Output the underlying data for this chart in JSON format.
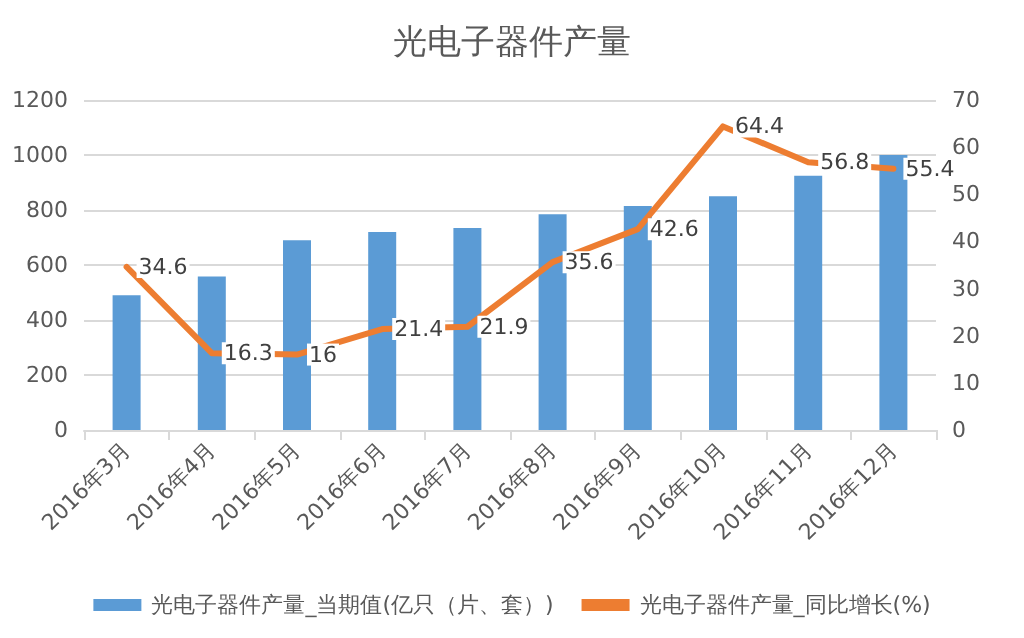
{
  "chart_data": {
    "type": "bar",
    "title": "光电子器件产量",
    "categories": [
      "2016年3月",
      "2016年4月",
      "2016年5月",
      "2016年6月",
      "2016年7月",
      "2016年8月",
      "2016年9月",
      "2016年10月",
      "2016年11月",
      "2016年12月"
    ],
    "series": [
      {
        "name": "光电子器件产量_当期值(亿只（片、套）)",
        "color": "#5b9bd5",
        "values": [
          490,
          558,
          690,
          720,
          735,
          785,
          815,
          850,
          925,
          1000
        ]
      },
      {
        "name": "光电子器件产量_同比增长(%)",
        "type": "line",
        "axis": "y2",
        "color": "#ed7d31",
        "values": [
          34.6,
          16.3,
          16,
          21.4,
          21.9,
          35.6,
          42.6,
          64.4,
          56.8,
          55.4
        ],
        "value_labels": [
          "34.6",
          "16.3",
          "16",
          "21.4",
          "21.9",
          "35.6",
          "42.6",
          "64.4",
          "56.8",
          "55.4"
        ]
      }
    ],
    "ylim": [
      0,
      1200
    ],
    "yticks": [
      0,
      200,
      400,
      600,
      800,
      1000,
      1200
    ],
    "y2lim": [
      0,
      70
    ],
    "y2ticks": [
      0,
      10,
      20,
      30,
      40,
      50,
      60,
      70
    ],
    "grid": "y",
    "legend": "bottom",
    "marker": "none",
    "line_style": "solid"
  }
}
